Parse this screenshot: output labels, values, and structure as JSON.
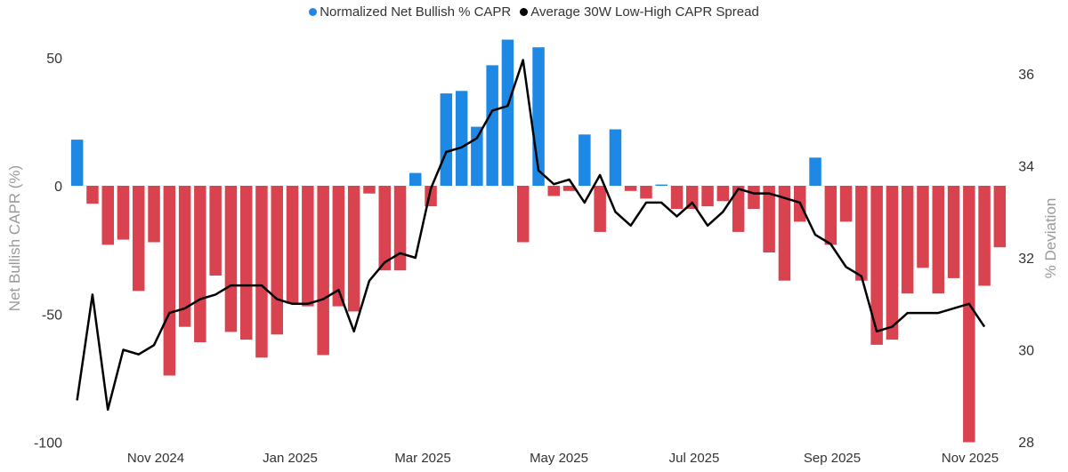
{
  "chart_data": {
    "type": "bar+line",
    "legend": [
      {
        "label": "Normalized Net Bullish % CAPR",
        "color": "#1e88e5"
      },
      {
        "label": "Average 30W Low-High CAPR Spread",
        "color": "#000000"
      }
    ],
    "left_axis": {
      "title": "Net Bullish CAPR (%)",
      "range": [
        -100,
        60
      ],
      "ticks": [
        50,
        0,
        -50,
        -100
      ]
    },
    "right_axis": {
      "title": "% Deviation",
      "range": [
        28,
        37
      ],
      "ticks": [
        36,
        34,
        32,
        30,
        28
      ]
    },
    "x_tick_labels": [
      "Nov 2024",
      "Jan 2025",
      "Mar 2025",
      "May 2025",
      "Jul 2025",
      "Sep 2025",
      "Nov 2025"
    ],
    "positive_color": "#1e88e5",
    "negative_color": "#d9434f",
    "line_color": "#000000",
    "bars": [
      18,
      -7,
      -23,
      -21,
      -41,
      -22,
      -74,
      -55,
      -61,
      -35,
      -57,
      -60,
      -67,
      -58,
      -46,
      -47,
      -66,
      -47,
      -49,
      -3,
      -33,
      -33,
      5,
      -8,
      36,
      37,
      23,
      47,
      57,
      -22,
      54,
      -4,
      -2,
      20,
      -18,
      22,
      -2,
      -5,
      0.5,
      -9,
      -9,
      -8,
      -6,
      -18,
      -9,
      -26,
      -37,
      -14,
      11,
      -23,
      -14,
      -37,
      -62,
      -60,
      -42,
      -32,
      -42,
      -36,
      -100,
      -39,
      -24
    ],
    "line": [
      28.9,
      31.2,
      28.7,
      30.0,
      29.9,
      30.1,
      30.8,
      30.9,
      31.1,
      31.2,
      31.4,
      31.4,
      31.4,
      31.1,
      31.0,
      31.0,
      31.1,
      31.3,
      30.4,
      31.5,
      31.9,
      32.1,
      32.0,
      33.5,
      34.3,
      34.4,
      34.6,
      35.2,
      35.3,
      36.3,
      33.9,
      33.6,
      33.7,
      33.2,
      33.8,
      33.0,
      32.7,
      33.2,
      33.2,
      32.9,
      33.2,
      32.7,
      33.0,
      33.5,
      33.4,
      33.4,
      33.3,
      33.2,
      32.5,
      32.3,
      31.8,
      31.6,
      30.4,
      30.5,
      30.8,
      30.8,
      30.8,
      30.9,
      31.0,
      30.5
    ]
  }
}
